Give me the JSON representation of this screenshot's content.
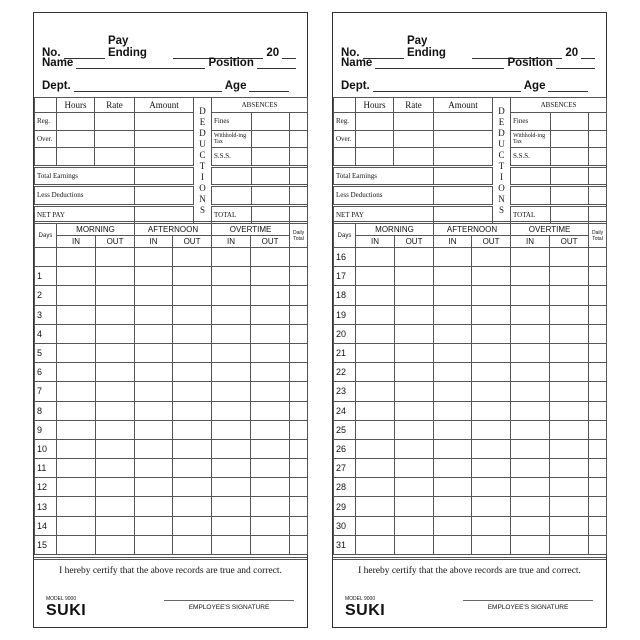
{
  "labels": {
    "no": "No.",
    "pay_ending": "Pay Ending",
    "year": "20",
    "name": "Name",
    "position": "Position",
    "dept": "Dept.",
    "age": "Age",
    "hours": "Hours",
    "rate": "Rate",
    "amount": "Amount",
    "deductions": "DEDUCTIONS",
    "absences": "ABSENCES",
    "reg": "Reg.",
    "over": "Over.",
    "fines": "Fines",
    "withholding_tax": "Withhold-ing Tax",
    "sss": "S.S.S.",
    "total_earnings": "Total Earnings",
    "less_deductions": "Less Deductions",
    "net_pay": "NET PAY",
    "total": "TOTAL",
    "days": "Days",
    "morning": "MORNING",
    "afternoon": "AFTERNOON",
    "overtime": "OVERTIME",
    "in": "IN",
    "out": "OUT",
    "daily_total": "Daily Total",
    "certify": "I hereby certify that the above records are true and correct.",
    "employee_signature": "EMPLOYEE'S SIGNATURE",
    "model": "MODEL 9000",
    "brand": "SUKI"
  },
  "cards": [
    {
      "days": [
        "",
        "1",
        "2",
        "3",
        "4",
        "5",
        "6",
        "7",
        "8",
        "9",
        "10",
        "11",
        "12",
        "13",
        "14",
        "15"
      ]
    },
    {
      "days": [
        "16",
        "17",
        "18",
        "19",
        "20",
        "21",
        "22",
        "23",
        "24",
        "25",
        "26",
        "27",
        "28",
        "29",
        "30",
        "31"
      ]
    }
  ]
}
